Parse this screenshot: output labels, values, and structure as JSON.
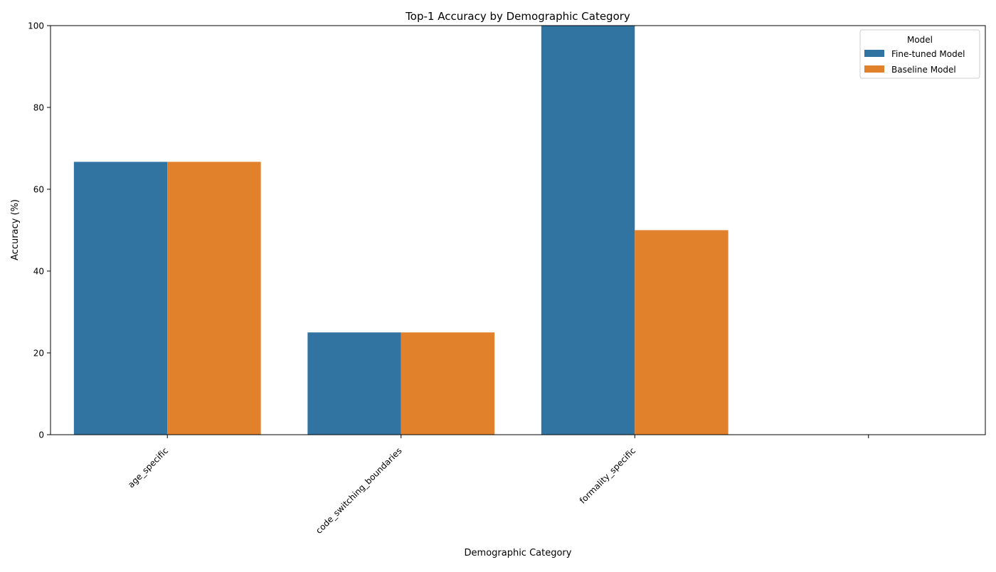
{
  "chart_data": {
    "type": "bar",
    "title": "Top-1 Accuracy by Demographic Category",
    "xlabel": "Demographic Category",
    "ylabel": "Accuracy (%)",
    "ylim": [
      0,
      100
    ],
    "yticks": [
      0,
      20,
      40,
      60,
      80,
      100
    ],
    "categories": [
      "age_specific",
      "code_switching_boundaries",
      "formality_specific",
      ""
    ],
    "series": [
      {
        "name": "Fine-tuned Model",
        "color": "#3274a1",
        "values": [
          66.7,
          25,
          100,
          0
        ]
      },
      {
        "name": "Baseline Model",
        "color": "#e1812c",
        "values": [
          66.7,
          25,
          50,
          0
        ]
      }
    ],
    "legend": {
      "title": "Model",
      "position": "top-right"
    },
    "grid": false
  }
}
